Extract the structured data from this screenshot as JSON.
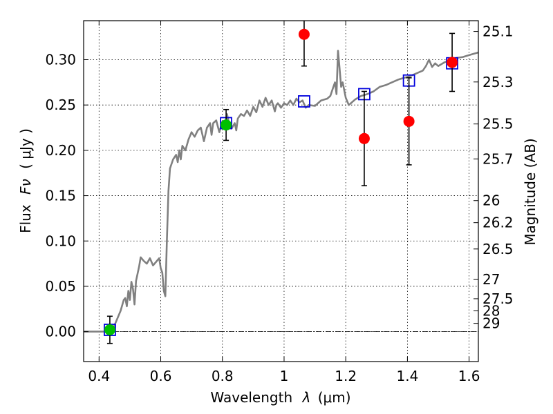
{
  "chart_data": {
    "type": "scatter",
    "xlabel_text": "Wavelength",
    "xlabel_symbol": "λ",
    "xlabel_unit": "(μm)",
    "ylabel_text": "Flux",
    "ylabel_symbol": "Fν",
    "ylabel_unit": "( μJy )",
    "y2label": "Magnitude (AB)",
    "xlim": [
      0.35,
      1.63
    ],
    "ylim": [
      -0.033,
      0.343
    ],
    "grid": true,
    "legend": "none",
    "x_ticks": [
      {
        "value": 0.4,
        "label": "0.4"
      },
      {
        "value": 0.6,
        "label": "0.6"
      },
      {
        "value": 0.8,
        "label": "0.8"
      },
      {
        "value": 1.0,
        "label": "1"
      },
      {
        "value": 1.2,
        "label": "1.2"
      },
      {
        "value": 1.4,
        "label": "1.4"
      },
      {
        "value": 1.6,
        "label": "1.6"
      }
    ],
    "y_ticks": [
      {
        "value": 0.0,
        "label": "0.00"
      },
      {
        "value": 0.05,
        "label": "0.05"
      },
      {
        "value": 0.1,
        "label": "0.10"
      },
      {
        "value": 0.15,
        "label": "0.15"
      },
      {
        "value": 0.2,
        "label": "0.20"
      },
      {
        "value": 0.25,
        "label": "0.25"
      },
      {
        "value": 0.3,
        "label": "0.30"
      }
    ],
    "mag_ticks": [
      {
        "value": 25.1,
        "label": "25.1"
      },
      {
        "value": 25.3,
        "label": "25.3"
      },
      {
        "value": 25.5,
        "label": "25.5"
      },
      {
        "value": 25.7,
        "label": "25.7"
      },
      {
        "value": 26,
        "label": "26"
      },
      {
        "value": 26.2,
        "label": "26.2"
      },
      {
        "value": 26.5,
        "label": "26.5"
      },
      {
        "value": 27,
        "label": "27"
      },
      {
        "value": 27.5,
        "label": "27.5"
      },
      {
        "value": 28,
        "label": "28"
      },
      {
        "value": 29,
        "label": "29"
      }
    ],
    "model_spectrum": {
      "color": "#808080",
      "points": [
        [
          0.35,
          0.0
        ],
        [
          0.43,
          0.0
        ],
        [
          0.445,
          0.003
        ],
        [
          0.46,
          0.015
        ],
        [
          0.47,
          0.023
        ],
        [
          0.48,
          0.035
        ],
        [
          0.485,
          0.037
        ],
        [
          0.49,
          0.028
        ],
        [
          0.495,
          0.045
        ],
        [
          0.5,
          0.035
        ],
        [
          0.505,
          0.055
        ],
        [
          0.51,
          0.047
        ],
        [
          0.515,
          0.03
        ],
        [
          0.52,
          0.056
        ],
        [
          0.53,
          0.072
        ],
        [
          0.535,
          0.082
        ],
        [
          0.545,
          0.078
        ],
        [
          0.555,
          0.075
        ],
        [
          0.565,
          0.081
        ],
        [
          0.575,
          0.073
        ],
        [
          0.585,
          0.077
        ],
        [
          0.595,
          0.081
        ],
        [
          0.6,
          0.07
        ],
        [
          0.605,
          0.065
        ],
        [
          0.61,
          0.045
        ],
        [
          0.615,
          0.039
        ],
        [
          0.62,
          0.1
        ],
        [
          0.625,
          0.155
        ],
        [
          0.63,
          0.18
        ],
        [
          0.64,
          0.19
        ],
        [
          0.65,
          0.195
        ],
        [
          0.655,
          0.187
        ],
        [
          0.66,
          0.2
        ],
        [
          0.665,
          0.19
        ],
        [
          0.67,
          0.205
        ],
        [
          0.68,
          0.2
        ],
        [
          0.69,
          0.212
        ],
        [
          0.7,
          0.22
        ],
        [
          0.71,
          0.215
        ],
        [
          0.72,
          0.222
        ],
        [
          0.73,
          0.225
        ],
        [
          0.74,
          0.21
        ],
        [
          0.75,
          0.225
        ],
        [
          0.76,
          0.23
        ],
        [
          0.765,
          0.217
        ],
        [
          0.77,
          0.23
        ],
        [
          0.78,
          0.233
        ],
        [
          0.79,
          0.22
        ],
        [
          0.8,
          0.232
        ],
        [
          0.81,
          0.228
        ],
        [
          0.815,
          0.24
        ],
        [
          0.82,
          0.232
        ],
        [
          0.83,
          0.224
        ],
        [
          0.84,
          0.23
        ],
        [
          0.845,
          0.222
        ],
        [
          0.85,
          0.235
        ],
        [
          0.86,
          0.24
        ],
        [
          0.87,
          0.238
        ],
        [
          0.88,
          0.244
        ],
        [
          0.89,
          0.238
        ],
        [
          0.9,
          0.248
        ],
        [
          0.91,
          0.242
        ],
        [
          0.92,
          0.255
        ],
        [
          0.93,
          0.248
        ],
        [
          0.94,
          0.258
        ],
        [
          0.95,
          0.25
        ],
        [
          0.96,
          0.255
        ],
        [
          0.97,
          0.243
        ],
        [
          0.975,
          0.25
        ],
        [
          0.98,
          0.252
        ],
        [
          0.99,
          0.247
        ],
        [
          1.0,
          0.252
        ],
        [
          1.01,
          0.25
        ],
        [
          1.02,
          0.255
        ],
        [
          1.03,
          0.25
        ],
        [
          1.04,
          0.257
        ],
        [
          1.05,
          0.253
        ],
        [
          1.06,
          0.255
        ],
        [
          1.07,
          0.247
        ],
        [
          1.08,
          0.25
        ],
        [
          1.1,
          0.249
        ],
        [
          1.12,
          0.255
        ],
        [
          1.14,
          0.257
        ],
        [
          1.15,
          0.26
        ],
        [
          1.16,
          0.27
        ],
        [
          1.165,
          0.275
        ],
        [
          1.17,
          0.262
        ],
        [
          1.175,
          0.31
        ],
        [
          1.18,
          0.29
        ],
        [
          1.185,
          0.27
        ],
        [
          1.19,
          0.275
        ],
        [
          1.2,
          0.258
        ],
        [
          1.21,
          0.25
        ],
        [
          1.23,
          0.256
        ],
        [
          1.25,
          0.26
        ],
        [
          1.27,
          0.262
        ],
        [
          1.29,
          0.265
        ],
        [
          1.31,
          0.27
        ],
        [
          1.33,
          0.272
        ],
        [
          1.35,
          0.275
        ],
        [
          1.37,
          0.278
        ],
        [
          1.39,
          0.28
        ],
        [
          1.41,
          0.282
        ],
        [
          1.43,
          0.285
        ],
        [
          1.45,
          0.288
        ],
        [
          1.46,
          0.293
        ],
        [
          1.47,
          0.3
        ],
        [
          1.48,
          0.292
        ],
        [
          1.49,
          0.296
        ],
        [
          1.5,
          0.293
        ],
        [
          1.52,
          0.297
        ],
        [
          1.54,
          0.3
        ],
        [
          1.56,
          0.302
        ],
        [
          1.58,
          0.303
        ],
        [
          1.6,
          0.305
        ],
        [
          1.63,
          0.308
        ]
      ]
    },
    "model_boxes": {
      "color": "#0000dd",
      "points": [
        [
          0.435,
          0.002
        ],
        [
          0.812,
          0.23
        ],
        [
          1.065,
          0.254
        ],
        [
          1.26,
          0.262
        ],
        [
          1.405,
          0.277
        ],
        [
          1.545,
          0.296
        ]
      ]
    },
    "measurements_green": {
      "color": "#00c000",
      "points": [
        {
          "x": 0.435,
          "y": 0.002,
          "err": 0.015
        },
        {
          "x": 0.812,
          "y": 0.228,
          "err": 0.017
        }
      ]
    },
    "measurements_red": {
      "color": "#ff0000",
      "points": [
        {
          "x": 1.065,
          "y": 0.328,
          "err": 0.035
        },
        {
          "x": 1.26,
          "y": 0.213,
          "err": 0.052
        },
        {
          "x": 1.405,
          "y": 0.232,
          "err": 0.048
        },
        {
          "x": 1.545,
          "y": 0.297,
          "err": 0.032
        }
      ]
    }
  }
}
